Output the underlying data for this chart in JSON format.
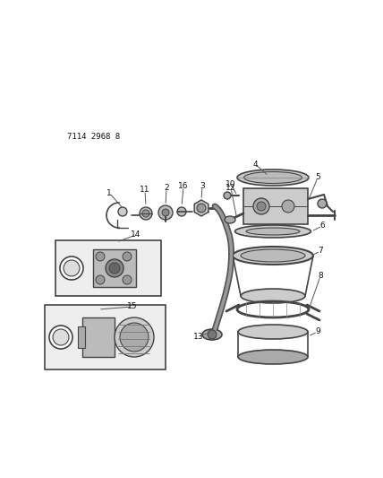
{
  "bg_color": "#ffffff",
  "dc": "#444444",
  "lc": "#666666",
  "reference_code": "7114 2968 8",
  "figsize": [
    4.28,
    5.33
  ],
  "dpi": 100
}
